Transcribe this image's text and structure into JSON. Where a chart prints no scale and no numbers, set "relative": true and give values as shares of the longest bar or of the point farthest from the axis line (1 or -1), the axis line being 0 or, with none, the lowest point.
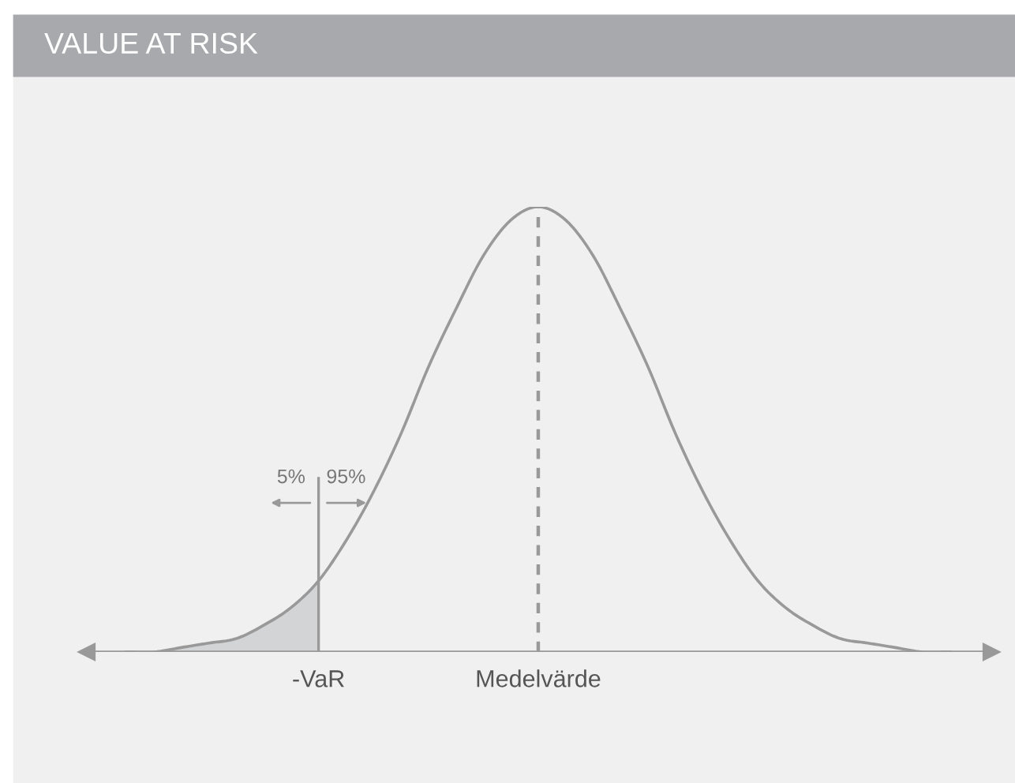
{
  "chart_data": {
    "type": "line",
    "title": "VALUE AT RISK",
    "relative": true,
    "categories": [
      null,
      null,
      null,
      null,
      null,
      null,
      null,
      "-VaR",
      null,
      null,
      null,
      null,
      null,
      null,
      null,
      "Medelvärde",
      null,
      null,
      null,
      null,
      null,
      null,
      null,
      null,
      null,
      null,
      null,
      null,
      null,
      null,
      null
    ],
    "series": [
      {
        "color": "#999999",
        "values": [
          0.0,
          0.0,
          0.01,
          0.02,
          0.03,
          0.06,
          0.1,
          0.16,
          0.25,
          0.36,
          0.49,
          0.64,
          0.77,
          0.89,
          0.97,
          1.0,
          0.97,
          0.89,
          0.77,
          0.64,
          0.49,
          0.36,
          0.25,
          0.16,
          0.1,
          0.06,
          0.03,
          0.02,
          0.01,
          0.0,
          0.0
        ]
      },
      {
        "type": "area",
        "color": "#d3d4d6",
        "values": [
          0.0,
          0.0,
          0.01,
          0.02,
          0.03,
          0.06,
          0.1,
          0.16,
          null,
          null,
          null,
          null,
          null,
          null,
          null,
          null,
          null,
          null,
          null,
          null,
          null,
          null,
          null,
          null,
          null,
          null,
          null,
          null,
          null,
          null,
          null
        ]
      }
    ],
    "ref_lines": [
      {
        "axis": "x",
        "value": "Medelvärde",
        "color": "#999999",
        "line_style": "dashed"
      },
      {
        "axis": "x",
        "value": "-VaR",
        "color": "#999999",
        "line_style": "solid"
      }
    ],
    "annotations": [
      "5%",
      "95%"
    ]
  }
}
